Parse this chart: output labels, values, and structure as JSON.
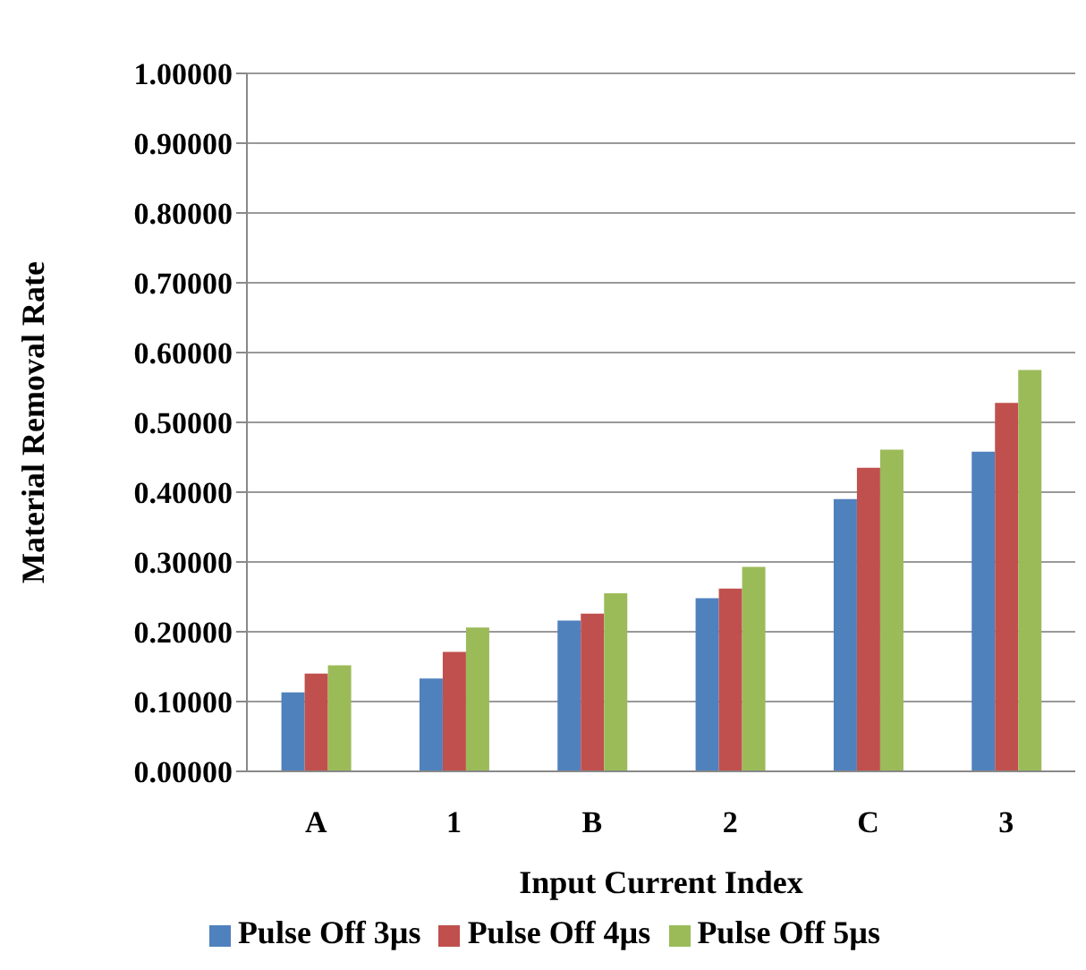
{
  "chart_data": {
    "type": "bar",
    "xlabel": "Input Current Index",
    "ylabel": "Material Removal Rate",
    "categories": [
      "A",
      "1",
      "B",
      "2",
      "C",
      "3"
    ],
    "series": [
      {
        "name": "Pulse Off 3µs",
        "color": "#4f81bd",
        "values": [
          0.113,
          0.133,
          0.216,
          0.248,
          0.39,
          0.458
        ]
      },
      {
        "name": "Pulse Off 4µs",
        "color": "#c0504d",
        "values": [
          0.14,
          0.171,
          0.226,
          0.262,
          0.435,
          0.528
        ]
      },
      {
        "name": "Pulse Off 5µs",
        "color": "#9bbb59",
        "values": [
          0.152,
          0.206,
          0.255,
          0.293,
          0.461,
          0.575
        ]
      }
    ],
    "ylim": [
      0,
      1
    ],
    "yticks": [
      {
        "value": 0,
        "label": "0.00000"
      },
      {
        "value": 0.1,
        "label": "0.10000"
      },
      {
        "value": 0.2,
        "label": "0.20000"
      },
      {
        "value": 0.3,
        "label": "0.30000"
      },
      {
        "value": 0.4,
        "label": "0.40000"
      },
      {
        "value": 0.5,
        "label": "0.50000"
      },
      {
        "value": 0.6,
        "label": "0.60000"
      },
      {
        "value": 0.7,
        "label": "0.70000"
      },
      {
        "value": 0.8,
        "label": "0.80000"
      },
      {
        "value": 0.9,
        "label": "0.90000"
      },
      {
        "value": 1,
        "label": "1.00000"
      }
    ],
    "grid": "y",
    "legend": "bottom"
  }
}
